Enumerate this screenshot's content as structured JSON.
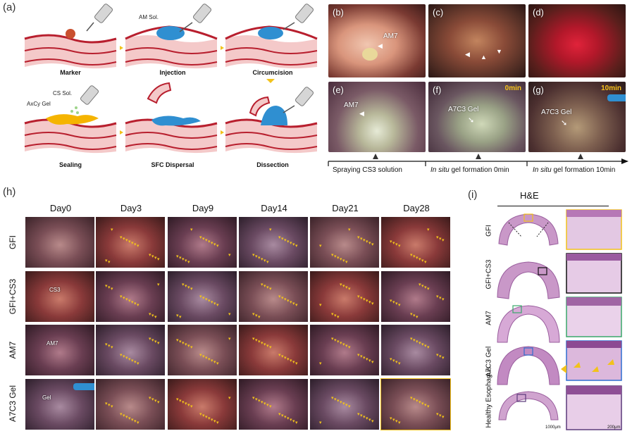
{
  "panel_a": {
    "label": "(a)",
    "steps": [
      "Marker",
      "Injection",
      "Circumcision",
      "Sealing",
      "SFC Dispersal",
      "Dissection"
    ],
    "annotations": {
      "am_sol": "AM Sol.",
      "cs_sol": "CS Sol.",
      "axcy_gel": "AxCy Gel"
    }
  },
  "photo_panels": [
    {
      "label": "(b)",
      "text": "AM7",
      "time": ""
    },
    {
      "label": "(c)",
      "text": "",
      "time": ""
    },
    {
      "label": "(d)",
      "text": "",
      "time": ""
    },
    {
      "label": "(e)",
      "text": "AM7",
      "time": ""
    },
    {
      "label": "(f)",
      "text": "A7C3 Gel",
      "time": "0min"
    },
    {
      "label": "(g)",
      "text": "A7C3 Gel",
      "time": "10min"
    }
  ],
  "timeline": {
    "seg1": "Spraying CS3 solution",
    "seg2_italic": "In situ",
    "seg2_rest": " gel formation 0min",
    "seg3_italic": "In situ",
    "seg3_rest": " gel formation 10min"
  },
  "panel_h": {
    "label": "(h)",
    "days": [
      "Day0",
      "Day3",
      "Day9",
      "Day14",
      "Day21",
      "Day28"
    ],
    "groups": [
      "GFI",
      "GFI+CS3",
      "AM7",
      "A7C3 Gel"
    ],
    "cell_labels": {
      "cs3": "CS3",
      "am7": "AM7",
      "gel": "Gel"
    }
  },
  "panel_i": {
    "label": "(i)",
    "title": "H&E",
    "rows": [
      "GFI",
      "GFI+CS3",
      "AM7",
      "A7C3 Gel",
      "Healthy Esophagus"
    ],
    "scale_left": "1000μm",
    "scale_right": "200μm"
  },
  "colors": {
    "marker_yellow": "#f2c21b",
    "tissue_red": "#c0283a",
    "gel_blue": "#2f8fd1",
    "gel_orange": "#f5b400"
  }
}
